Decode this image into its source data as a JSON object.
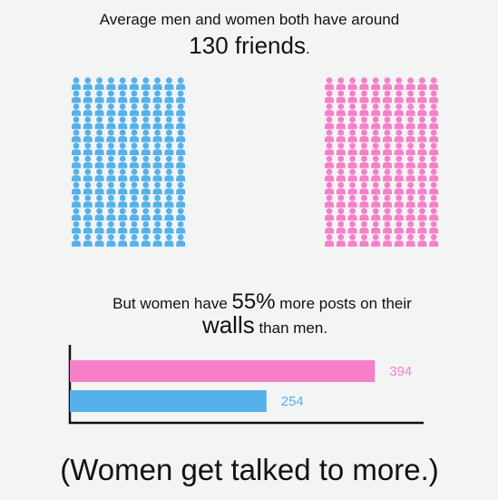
{
  "top_text": {
    "before": "Average men and women both have around",
    "number": 130,
    "unit": " friends",
    "period": "."
  },
  "middle_text": {
    "lead": "But women have ",
    "percent": "55%",
    "rest": " more posts on their",
    "walls": "walls",
    "tail": " than men."
  },
  "chart_data": {
    "type": "hbar",
    "values": [
      394,
      254
    ],
    "colors": [
      "#f77fca",
      "#55b1ea"
    ],
    "xlim": [
      0,
      457
    ]
  },
  "footer": "(Women get talked to more.)"
}
